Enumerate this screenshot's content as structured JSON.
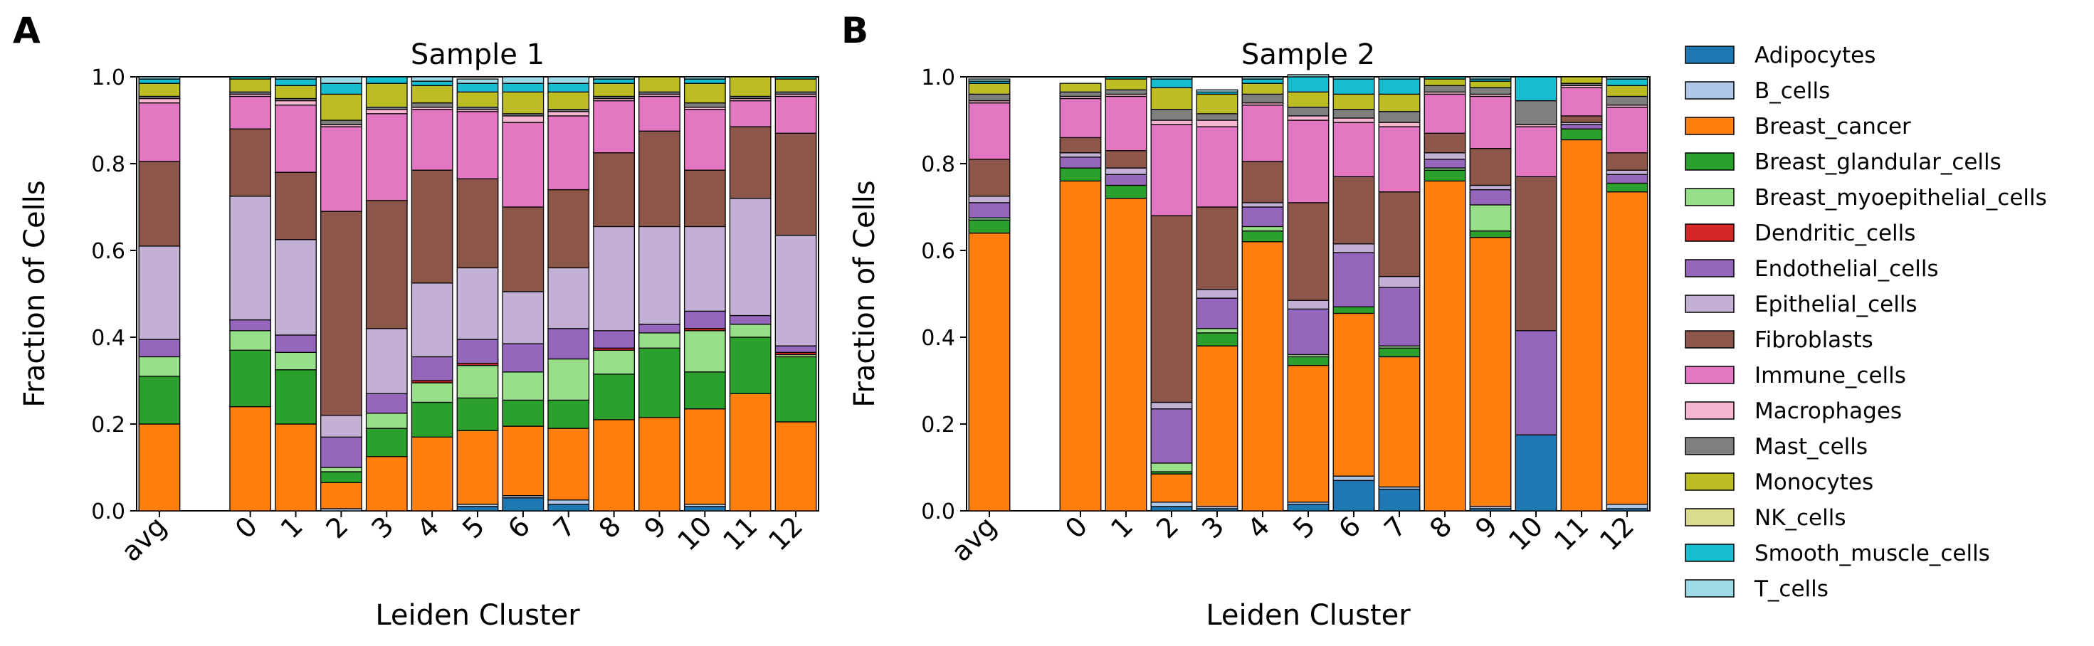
{
  "panel_labels": [
    "A",
    "B"
  ],
  "legend_entries": [
    {
      "name": "Adipocytes",
      "color": "#1f77b4"
    },
    {
      "name": "B_cells",
      "color": "#aec7e8"
    },
    {
      "name": "Breast_cancer",
      "color": "#ff7f0e"
    },
    {
      "name": "Breast_glandular_cells",
      "color": "#2ca02c"
    },
    {
      "name": "Breast_myoepithelial_cells",
      "color": "#98df8a"
    },
    {
      "name": "Dendritic_cells",
      "color": "#d62728"
    },
    {
      "name": "Endothelial_cells",
      "color": "#9467bd"
    },
    {
      "name": "Epithelial_cells",
      "color": "#c5b0d5"
    },
    {
      "name": "Fibroblasts",
      "color": "#8c564b"
    },
    {
      "name": "Immune_cells",
      "color": "#e377c2"
    },
    {
      "name": "Macrophages",
      "color": "#f7b6d2"
    },
    {
      "name": "Mast_cells",
      "color": "#7f7f7f"
    },
    {
      "name": "Monocytes",
      "color": "#bcbd22"
    },
    {
      "name": "NK_cells",
      "color": "#dbdb8d"
    },
    {
      "name": "Smooth_muscle_cells",
      "color": "#17becf"
    },
    {
      "name": "T_cells",
      "color": "#9edae5"
    }
  ],
  "chart_data": [
    {
      "type": "bar",
      "stacked": true,
      "title": "Sample 1",
      "xlabel": "Leiden Cluster",
      "ylabel": "Fraction of Cells",
      "ylim": [
        0,
        1
      ],
      "yticks": [
        "0.0",
        "0.2",
        "0.4",
        "0.6",
        "0.8",
        "1.0"
      ],
      "categories": [
        "avg",
        "0",
        "1",
        "2",
        "3",
        "4",
        "5",
        "6",
        "7",
        "8",
        "9",
        "10",
        "11",
        "12"
      ],
      "series": [
        {
          "name": "Adipocytes",
          "values": [
            0.0,
            0.0,
            0.0,
            0.0,
            0.0,
            0.0,
            0.01,
            0.03,
            0.015,
            0.0,
            0.0,
            0.01,
            0.0,
            0.0
          ]
        },
        {
          "name": "B_cells",
          "values": [
            0.0,
            0.0,
            0.0,
            0.005,
            0.0,
            0.0,
            0.005,
            0.005,
            0.01,
            0.0,
            0.0,
            0.005,
            0.0,
            0.0
          ]
        },
        {
          "name": "Breast_cancer",
          "values": [
            0.2,
            0.24,
            0.2,
            0.06,
            0.125,
            0.17,
            0.17,
            0.16,
            0.165,
            0.21,
            0.215,
            0.22,
            0.27,
            0.205
          ]
        },
        {
          "name": "Breast_glandular_cells",
          "values": [
            0.11,
            0.13,
            0.125,
            0.025,
            0.065,
            0.08,
            0.075,
            0.06,
            0.065,
            0.105,
            0.16,
            0.085,
            0.13,
            0.15
          ]
        },
        {
          "name": "Breast_myoepithelial_cells",
          "values": [
            0.045,
            0.045,
            0.04,
            0.01,
            0.035,
            0.045,
            0.075,
            0.065,
            0.095,
            0.055,
            0.035,
            0.095,
            0.03,
            0.005
          ]
        },
        {
          "name": "Dendritic_cells",
          "values": [
            0.0,
            0.0,
            0.0,
            0.0,
            0.0,
            0.005,
            0.005,
            0.0,
            0.0,
            0.005,
            0.0,
            0.005,
            0.0,
            0.005
          ]
        },
        {
          "name": "Endothelial_cells",
          "values": [
            0.04,
            0.025,
            0.04,
            0.07,
            0.045,
            0.055,
            0.055,
            0.065,
            0.07,
            0.04,
            0.02,
            0.04,
            0.02,
            0.015
          ]
        },
        {
          "name": "Epithelial_cells",
          "values": [
            0.215,
            0.285,
            0.22,
            0.05,
            0.15,
            0.17,
            0.165,
            0.12,
            0.14,
            0.24,
            0.225,
            0.195,
            0.27,
            0.255
          ]
        },
        {
          "name": "Fibroblasts",
          "values": [
            0.195,
            0.155,
            0.155,
            0.47,
            0.295,
            0.26,
            0.205,
            0.195,
            0.18,
            0.17,
            0.22,
            0.13,
            0.165,
            0.235
          ]
        },
        {
          "name": "Immune_cells",
          "values": [
            0.135,
            0.075,
            0.155,
            0.195,
            0.2,
            0.14,
            0.155,
            0.195,
            0.17,
            0.12,
            0.08,
            0.14,
            0.06,
            0.085
          ]
        },
        {
          "name": "Macrophages",
          "values": [
            0.01,
            0.005,
            0.01,
            0.005,
            0.01,
            0.005,
            0.005,
            0.015,
            0.01,
            0.005,
            0.005,
            0.005,
            0.005,
            0.005
          ]
        },
        {
          "name": "Mast_cells",
          "values": [
            0.005,
            0.005,
            0.005,
            0.01,
            0.005,
            0.01,
            0.005,
            0.005,
            0.005,
            0.005,
            0.005,
            0.01,
            0.005,
            0.005
          ]
        },
        {
          "name": "Monocytes",
          "values": [
            0.03,
            0.03,
            0.03,
            0.06,
            0.055,
            0.04,
            0.035,
            0.05,
            0.04,
            0.03,
            0.035,
            0.045,
            0.045,
            0.03
          ]
        },
        {
          "name": "NK_cells",
          "values": [
            0.0,
            0.0,
            0.0,
            0.0,
            0.0,
            0.0,
            0.0,
            0.0,
            0.0,
            0.0,
            0.0,
            0.0,
            0.0,
            0.0
          ]
        },
        {
          "name": "Smooth_muscle_cells",
          "values": [
            0.01,
            0.005,
            0.015,
            0.025,
            0.015,
            0.01,
            0.02,
            0.02,
            0.02,
            0.01,
            0.0,
            0.01,
            0.0,
            0.005
          ]
        },
        {
          "name": "T_cells",
          "values": [
            0.005,
            0.0,
            0.005,
            0.015,
            0.0,
            0.01,
            0.01,
            0.015,
            0.015,
            0.005,
            0.0,
            0.005,
            0.0,
            0.0
          ]
        }
      ]
    },
    {
      "type": "bar",
      "stacked": true,
      "title": "Sample 2",
      "xlabel": "Leiden Cluster",
      "ylabel": "Fraction of Cells",
      "ylim": [
        0,
        1
      ],
      "yticks": [
        "0.0",
        "0.2",
        "0.4",
        "0.6",
        "0.8",
        "1.0"
      ],
      "categories": [
        "avg",
        "0",
        "1",
        "2",
        "3",
        "4",
        "5",
        "6",
        "7",
        "8",
        "9",
        "10",
        "11",
        "12"
      ],
      "series": [
        {
          "name": "Adipocytes",
          "values": [
            0.0,
            0.0,
            0.0,
            0.01,
            0.005,
            0.0,
            0.015,
            0.07,
            0.05,
            0.0,
            0.005,
            0.175,
            0.0,
            0.005
          ]
        },
        {
          "name": "B_cells",
          "values": [
            0.0,
            0.0,
            0.0,
            0.01,
            0.005,
            0.0,
            0.005,
            0.01,
            0.005,
            0.0,
            0.005,
            0.0,
            0.0,
            0.01
          ]
        },
        {
          "name": "Breast_cancer",
          "values": [
            0.64,
            0.76,
            0.72,
            0.065,
            0.37,
            0.62,
            0.315,
            0.375,
            0.3,
            0.76,
            0.62,
            0.0,
            0.855,
            0.72
          ]
        },
        {
          "name": "Breast_glandular_cells",
          "values": [
            0.03,
            0.03,
            0.03,
            0.005,
            0.03,
            0.025,
            0.02,
            0.015,
            0.02,
            0.025,
            0.015,
            0.0,
            0.025,
            0.02
          ]
        },
        {
          "name": "Breast_myoepithelial_cells",
          "values": [
            0.005,
            0.0,
            0.0,
            0.02,
            0.01,
            0.01,
            0.005,
            0.0,
            0.005,
            0.005,
            0.06,
            0.0,
            0.0,
            0.0
          ]
        },
        {
          "name": "Dendritic_cells",
          "values": [
            0.0,
            0.0,
            0.0,
            0.0,
            0.0,
            0.0,
            0.0,
            0.0,
            0.0,
            0.0,
            0.0,
            0.0,
            0.0,
            0.0
          ]
        },
        {
          "name": "Endothelial_cells",
          "values": [
            0.035,
            0.025,
            0.025,
            0.125,
            0.07,
            0.045,
            0.105,
            0.125,
            0.135,
            0.02,
            0.035,
            0.24,
            0.01,
            0.02
          ]
        },
        {
          "name": "Epithelial_cells",
          "values": [
            0.015,
            0.01,
            0.015,
            0.015,
            0.02,
            0.01,
            0.02,
            0.02,
            0.025,
            0.015,
            0.01,
            0.0,
            0.005,
            0.01
          ]
        },
        {
          "name": "Fibroblasts",
          "values": [
            0.085,
            0.035,
            0.04,
            0.43,
            0.19,
            0.095,
            0.225,
            0.155,
            0.195,
            0.045,
            0.085,
            0.355,
            0.015,
            0.04
          ]
        },
        {
          "name": "Immune_cells",
          "values": [
            0.13,
            0.09,
            0.125,
            0.21,
            0.185,
            0.13,
            0.19,
            0.125,
            0.15,
            0.09,
            0.12,
            0.115,
            0.065,
            0.105
          ]
        },
        {
          "name": "Macrophages",
          "values": [
            0.005,
            0.005,
            0.005,
            0.01,
            0.015,
            0.005,
            0.01,
            0.01,
            0.01,
            0.005,
            0.005,
            0.005,
            0.005,
            0.005
          ]
        },
        {
          "name": "Mast_cells",
          "values": [
            0.015,
            0.01,
            0.01,
            0.025,
            0.015,
            0.02,
            0.02,
            0.02,
            0.025,
            0.015,
            0.015,
            0.055,
            0.005,
            0.02
          ]
        },
        {
          "name": "Monocytes",
          "values": [
            0.025,
            0.02,
            0.025,
            0.05,
            0.045,
            0.025,
            0.035,
            0.035,
            0.04,
            0.015,
            0.015,
            0.0,
            0.015,
            0.025
          ]
        },
        {
          "name": "NK_cells",
          "values": [
            0.0,
            0.0,
            0.0,
            0.0,
            0.0,
            0.0,
            0.0,
            0.0,
            0.0,
            0.0,
            0.0,
            0.0,
            0.0,
            0.0
          ]
        },
        {
          "name": "Smooth_muscle_cells",
          "values": [
            0.005,
            0.0,
            0.005,
            0.02,
            0.005,
            0.01,
            0.035,
            0.035,
            0.035,
            0.005,
            0.005,
            0.055,
            0.0,
            0.015
          ]
        },
        {
          "name": "T_cells",
          "values": [
            0.005,
            0.0,
            0.0,
            0.005,
            0.005,
            0.005,
            0.005,
            0.005,
            0.005,
            0.0,
            0.005,
            0.0,
            0.0,
            0.005
          ]
        }
      ]
    }
  ]
}
